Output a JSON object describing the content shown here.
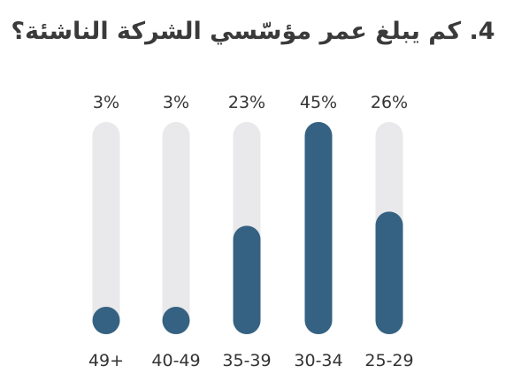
{
  "chart_data": {
    "type": "bar",
    "title": "4. كم يبلغ عمر مؤسّسي الشركة الناشئة؟",
    "categories": [
      "49+",
      "40-49",
      "35-39",
      "30-34",
      "25-29"
    ],
    "values": [
      3,
      3,
      23,
      45,
      26
    ],
    "value_labels": [
      "3%",
      "3%",
      "23%",
      "45%",
      "26%"
    ],
    "unit": "%",
    "ylim": [
      0,
      45
    ],
    "grid": false,
    "legend": "none",
    "colors": {
      "bar": "#356282",
      "track": "#e9e9eb",
      "text": "#333333"
    }
  }
}
